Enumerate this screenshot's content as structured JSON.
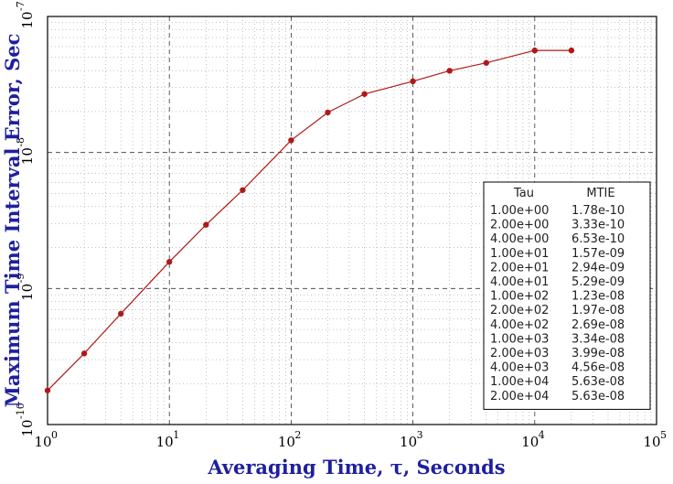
{
  "chart_data": {
    "type": "line",
    "xscale": "log",
    "yscale": "log",
    "xlim": [
      1,
      100000
    ],
    "ylim": [
      1e-10,
      1e-07
    ],
    "grid": true,
    "xlabel": "Averaging Time, τ, Seconds",
    "ylabel": "Maximum Time Interval Error, Sec",
    "x_ticks": [
      {
        "base": "10",
        "exp": "0"
      },
      {
        "base": "10",
        "exp": "1"
      },
      {
        "base": "10",
        "exp": "2"
      },
      {
        "base": "10",
        "exp": "3"
      },
      {
        "base": "10",
        "exp": "4"
      },
      {
        "base": "10",
        "exp": "5"
      }
    ],
    "y_ticks": [
      {
        "base": "10",
        "exp": "-10"
      },
      {
        "base": "10",
        "exp": "-9"
      },
      {
        "base": "10",
        "exp": "-8"
      },
      {
        "base": "10",
        "exp": "-7"
      }
    ],
    "series": [
      {
        "color": "#b01818",
        "x": [
          1,
          2,
          4,
          10,
          20,
          40,
          100,
          200,
          400,
          1000,
          2000,
          4000,
          10000,
          20000
        ],
        "y": [
          1.78e-10,
          3.33e-10,
          6.53e-10,
          1.57e-09,
          2.94e-09,
          5.29e-09,
          1.23e-08,
          1.97e-08,
          2.69e-08,
          3.34e-08,
          3.99e-08,
          4.56e-08,
          5.63e-08,
          5.63e-08
        ]
      }
    ],
    "table": {
      "location": "lower-right",
      "headers": [
        "Tau",
        "MTIE"
      ],
      "rows": [
        [
          "1.00e+00",
          "1.78e-10"
        ],
        [
          "2.00e+00",
          "3.33e-10"
        ],
        [
          "4.00e+00",
          "6.53e-10"
        ],
        [
          "1.00e+01",
          "1.57e-09"
        ],
        [
          "2.00e+01",
          "2.94e-09"
        ],
        [
          "4.00e+01",
          "5.29e-09"
        ],
        [
          "1.00e+02",
          "1.23e-08"
        ],
        [
          "2.00e+02",
          "1.97e-08"
        ],
        [
          "4.00e+02",
          "2.69e-08"
        ],
        [
          "1.00e+03",
          "3.34e-08"
        ],
        [
          "2.00e+03",
          "3.99e-08"
        ],
        [
          "4.00e+03",
          "4.56e-08"
        ],
        [
          "1.00e+04",
          "5.63e-08"
        ],
        [
          "2.00e+04",
          "5.63e-08"
        ]
      ]
    }
  }
}
